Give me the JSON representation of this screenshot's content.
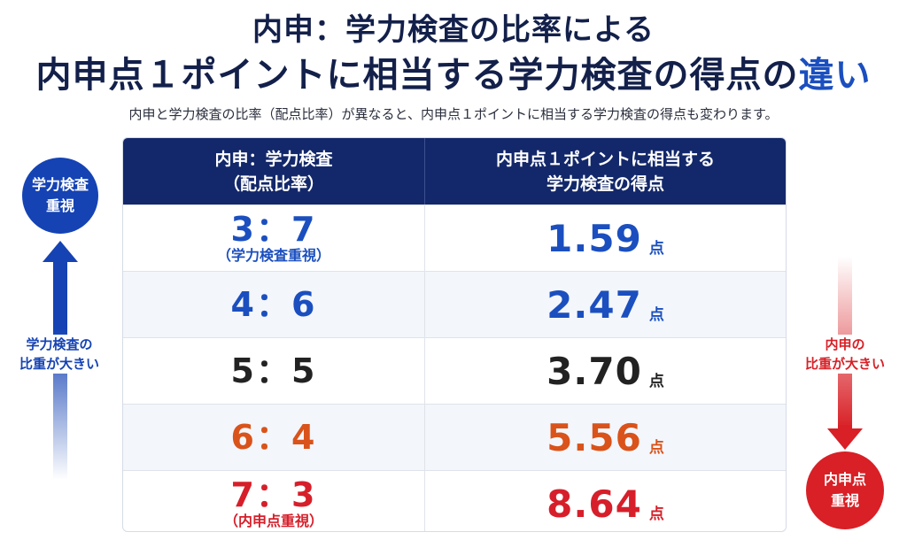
{
  "title": {
    "line1": "内申：学力検査の比率による",
    "line2_main": "内申点１ポイントに相当する学力検査の得点の",
    "line2_accent": "違い"
  },
  "subtitle": "内申と学力検査の比率（配点比率）が異なると、内申点１ポイントに相当する学力検査の得点も変わります。",
  "table": {
    "header_col1_line1": "内申：学力検査",
    "header_col1_line2": "（配点比率）",
    "header_col2_line1": "内申点１ポイントに相当する",
    "header_col2_line2": "学力検査の得点",
    "unit": "点",
    "rows": [
      {
        "ratio": "3：7",
        "note": "（学力検査重視）",
        "score": "1.59",
        "color": "#1b4fbf"
      },
      {
        "ratio": "4：6",
        "note": "",
        "score": "2.47",
        "color": "#1b4fbf"
      },
      {
        "ratio": "5：5",
        "note": "",
        "score": "3.70",
        "color": "#222222"
      },
      {
        "ratio": "6：4",
        "note": "",
        "score": "5.56",
        "color": "#d9531a"
      },
      {
        "ratio": "7：3",
        "note": "（内申点重視）",
        "score": "8.64",
        "color": "#d61f2a"
      }
    ]
  },
  "left_side": {
    "circle_line1": "学力検査",
    "circle_line2": "重視",
    "label_line1": "学力検査の",
    "label_line2": "比重が大きい",
    "color": "#1543b4"
  },
  "right_side": {
    "circle_line1": "内申点",
    "circle_line2": "重視",
    "label_line1": "内申の",
    "label_line2": "比重が大きい",
    "color": "#d82026"
  }
}
